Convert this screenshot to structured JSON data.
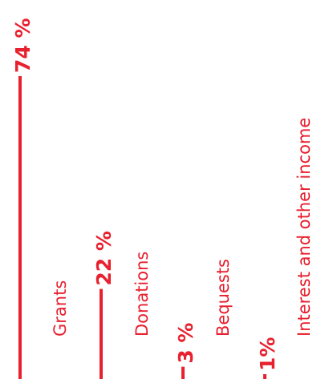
{
  "colors": {
    "accent": "#e8212f"
  },
  "chart_data": {
    "type": "bar",
    "orientation": "vertical",
    "title": "",
    "xlabel": "",
    "ylabel": "",
    "ylim": [
      0,
      74
    ],
    "grid": false,
    "legend": "none",
    "categories": [
      "Grants",
      "Donations",
      "Bequests",
      "Interest and other income"
    ],
    "values": [
      74,
      22,
      3,
      1
    ],
    "value_labels": [
      "74 %",
      "22 %",
      "3 %",
      "1%"
    ]
  }
}
